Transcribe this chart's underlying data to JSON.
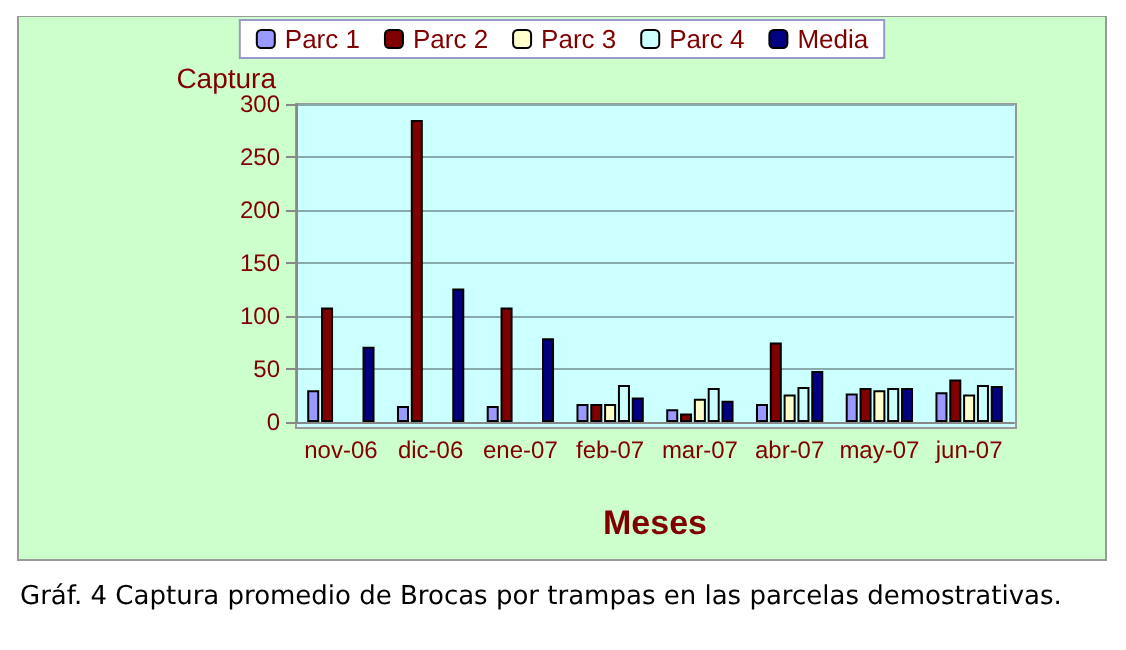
{
  "chart_data": {
    "type": "bar",
    "xlabel": "Meses",
    "ylabel": "Captura",
    "annotations": [
      "Gráf. 4 Captura promedio de Brocas por trampas en las parcelas demostrativas."
    ],
    "categories": [
      "nov-06",
      "dic-06",
      "ene-07",
      "feb-07",
      "mar-07",
      "abr-07",
      "may-07",
      "jun-07"
    ],
    "series": [
      {
        "name": "Parc 1",
        "color": "#9999ff",
        "values": [
          30,
          15,
          15,
          17,
          12,
          17,
          27,
          28
        ]
      },
      {
        "name": "Parc 2",
        "color": "#800000",
        "values": [
          108,
          285,
          108,
          17,
          8,
          75,
          32,
          40
        ]
      },
      {
        "name": "Parc 3",
        "color": "#ffffcc",
        "values": [
          null,
          null,
          null,
          17,
          22,
          26,
          30,
          26
        ]
      },
      {
        "name": "Parc 4",
        "color": "#ccffff",
        "values": [
          null,
          null,
          null,
          35,
          32,
          33,
          32,
          35
        ]
      },
      {
        "name": "Media",
        "color": "#000080",
        "values": [
          71,
          126,
          79,
          23,
          20,
          48,
          32,
          34
        ]
      }
    ],
    "ylim": [
      0,
      300
    ],
    "yticks": [
      0,
      50,
      100,
      150,
      200,
      250,
      300
    ],
    "grid": "y",
    "legend": "top"
  }
}
